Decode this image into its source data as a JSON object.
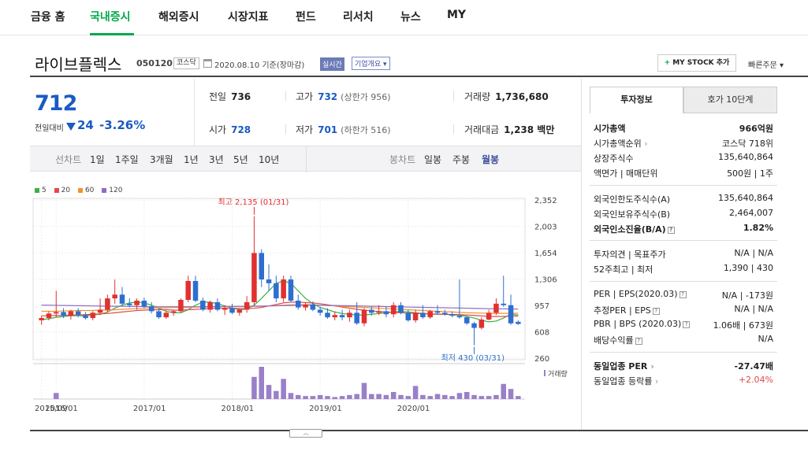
{
  "nav": {
    "items": [
      "금융 홈",
      "국내증시",
      "해외증시",
      "시장지표",
      "펀드",
      "리서치",
      "뉴스",
      "MY"
    ],
    "active": "국내증시",
    "accent": "#03a94d"
  },
  "stock": {
    "name": "라이브플렉스",
    "code": "050120",
    "market": "코스닥",
    "date": "2020.08.10 기준(장마감)",
    "realtime": "실시간",
    "overview": "기업개요",
    "mystock": "MY STOCK 추가",
    "quick_order": "빠른주문"
  },
  "price": {
    "current": "712",
    "prev_label": "전일대비",
    "change": "24",
    "change_pct": "-3.26%",
    "direction": "down",
    "color": "#1a5ac2"
  },
  "quote": {
    "prev_close_label": "전일",
    "prev_close": "736",
    "high_label": "고가",
    "high": "732",
    "upper_limit": "(상한가 956)",
    "volume_label": "거래량",
    "volume": "1,736,680",
    "open_label": "시가",
    "open": "728",
    "low_label": "저가",
    "low": "701",
    "lower_limit": "(하한가 516)",
    "amount_label": "거래대금",
    "amount": "1,238 백만"
  },
  "period": {
    "line_label": "선차트",
    "line_options": [
      "1일",
      "1주일",
      "3개월",
      "1년",
      "3년",
      "5년",
      "10년"
    ],
    "candle_label": "봉차트",
    "candle_options": [
      "일봉",
      "주봉",
      "월봉"
    ],
    "candle_selected": "월봉"
  },
  "chart_data": {
    "type": "candlestick",
    "legend": [
      {
        "name": "5",
        "color": "#3cb043"
      },
      {
        "name": "20",
        "color": "#e24a4a"
      },
      {
        "name": "60",
        "color": "#f0932b"
      },
      {
        "name": "120",
        "color": "#8e6cc4"
      }
    ],
    "y_ticks": [
      "2,352",
      "2,003",
      "1,654",
      "1,306",
      "957",
      "608",
      "260"
    ],
    "ylim": [
      260,
      2352
    ],
    "x_ticks": [
      "2015/09",
      "2016/01",
      "2017/01",
      "2018/01",
      "2019/01",
      "2020/01"
    ],
    "high_annotation": "최고 2,135 (01/31)",
    "low_annotation": "최저 430 (03/31)",
    "volume_label": "거래량",
    "candles": [
      {
        "o": 760,
        "h": 820,
        "l": 700,
        "c": 790
      },
      {
        "o": 790,
        "h": 880,
        "l": 760,
        "c": 850
      },
      {
        "o": 850,
        "h": 1150,
        "l": 800,
        "c": 870
      },
      {
        "o": 870,
        "h": 920,
        "l": 790,
        "c": 820
      },
      {
        "o": 820,
        "h": 900,
        "l": 770,
        "c": 880
      },
      {
        "o": 880,
        "h": 920,
        "l": 800,
        "c": 830
      },
      {
        "o": 830,
        "h": 870,
        "l": 770,
        "c": 790
      },
      {
        "o": 790,
        "h": 880,
        "l": 760,
        "c": 860
      },
      {
        "o": 860,
        "h": 1050,
        "l": 830,
        "c": 900
      },
      {
        "o": 900,
        "h": 1100,
        "l": 860,
        "c": 1050
      },
      {
        "o": 1050,
        "h": 1300,
        "l": 980,
        "c": 1100
      },
      {
        "o": 1100,
        "h": 1200,
        "l": 950,
        "c": 980
      },
      {
        "o": 980,
        "h": 1050,
        "l": 930,
        "c": 960
      },
      {
        "o": 960,
        "h": 1050,
        "l": 900,
        "c": 1020
      },
      {
        "o": 1020,
        "h": 1060,
        "l": 920,
        "c": 940
      },
      {
        "o": 940,
        "h": 1000,
        "l": 850,
        "c": 880
      },
      {
        "o": 880,
        "h": 920,
        "l": 780,
        "c": 800
      },
      {
        "o": 800,
        "h": 880,
        "l": 780,
        "c": 860
      },
      {
        "o": 860,
        "h": 900,
        "l": 820,
        "c": 880
      },
      {
        "o": 880,
        "h": 1050,
        "l": 860,
        "c": 1030
      },
      {
        "o": 1030,
        "h": 1350,
        "l": 1000,
        "c": 1280
      },
      {
        "o": 1280,
        "h": 1350,
        "l": 1000,
        "c": 1020
      },
      {
        "o": 1020,
        "h": 1060,
        "l": 880,
        "c": 900
      },
      {
        "o": 900,
        "h": 1020,
        "l": 860,
        "c": 1000
      },
      {
        "o": 1000,
        "h": 1050,
        "l": 880,
        "c": 900
      },
      {
        "o": 900,
        "h": 960,
        "l": 830,
        "c": 920
      },
      {
        "o": 920,
        "h": 980,
        "l": 840,
        "c": 860
      },
      {
        "o": 860,
        "h": 920,
        "l": 820,
        "c": 900
      },
      {
        "o": 900,
        "h": 1080,
        "l": 860,
        "c": 1000
      },
      {
        "o": 1000,
        "h": 2135,
        "l": 960,
        "c": 1650
      },
      {
        "o": 1650,
        "h": 1700,
        "l": 1200,
        "c": 1300
      },
      {
        "o": 1300,
        "h": 1500,
        "l": 1150,
        "c": 1250
      },
      {
        "o": 1250,
        "h": 1350,
        "l": 1000,
        "c": 1050
      },
      {
        "o": 1050,
        "h": 1350,
        "l": 1000,
        "c": 1300
      },
      {
        "o": 1300,
        "h": 1350,
        "l": 1000,
        "c": 1020
      },
      {
        "o": 1020,
        "h": 1100,
        "l": 900,
        "c": 930
      },
      {
        "o": 930,
        "h": 1000,
        "l": 890,
        "c": 970
      },
      {
        "o": 970,
        "h": 1010,
        "l": 880,
        "c": 900
      },
      {
        "o": 900,
        "h": 940,
        "l": 820,
        "c": 860
      },
      {
        "o": 860,
        "h": 920,
        "l": 780,
        "c": 800
      },
      {
        "o": 800,
        "h": 880,
        "l": 760,
        "c": 830
      },
      {
        "o": 830,
        "h": 900,
        "l": 760,
        "c": 800
      },
      {
        "o": 800,
        "h": 900,
        "l": 740,
        "c": 860
      },
      {
        "o": 860,
        "h": 1000,
        "l": 700,
        "c": 720
      },
      {
        "o": 720,
        "h": 920,
        "l": 680,
        "c": 900
      },
      {
        "o": 900,
        "h": 940,
        "l": 820,
        "c": 860
      },
      {
        "o": 860,
        "h": 960,
        "l": 830,
        "c": 880
      },
      {
        "o": 880,
        "h": 940,
        "l": 800,
        "c": 840
      },
      {
        "o": 840,
        "h": 1000,
        "l": 800,
        "c": 960
      },
      {
        "o": 960,
        "h": 1000,
        "l": 840,
        "c": 860
      },
      {
        "o": 860,
        "h": 900,
        "l": 740,
        "c": 760
      },
      {
        "o": 760,
        "h": 900,
        "l": 730,
        "c": 860
      },
      {
        "o": 860,
        "h": 960,
        "l": 780,
        "c": 800
      },
      {
        "o": 800,
        "h": 900,
        "l": 780,
        "c": 880
      },
      {
        "o": 880,
        "h": 960,
        "l": 830,
        "c": 860
      },
      {
        "o": 860,
        "h": 900,
        "l": 820,
        "c": 840
      },
      {
        "o": 840,
        "h": 880,
        "l": 800,
        "c": 820
      },
      {
        "o": 820,
        "h": 1300,
        "l": 780,
        "c": 800
      },
      {
        "o": 800,
        "h": 820,
        "l": 700,
        "c": 720
      },
      {
        "o": 720,
        "h": 740,
        "l": 430,
        "c": 660
      },
      {
        "o": 660,
        "h": 800,
        "l": 640,
        "c": 770
      },
      {
        "o": 770,
        "h": 900,
        "l": 760,
        "c": 860
      },
      {
        "o": 860,
        "h": 1050,
        "l": 830,
        "c": 980
      },
      {
        "o": 980,
        "h": 1350,
        "l": 940,
        "c": 960
      },
      {
        "o": 960,
        "h": 1100,
        "l": 700,
        "c": 720
      },
      {
        "o": 740,
        "h": 760,
        "l": 700,
        "c": 712
      }
    ],
    "ma": {
      "5": [
        770,
        780,
        800,
        810,
        820,
        820,
        820,
        830,
        840,
        870,
        920,
        960,
        990,
        1000,
        990,
        960,
        920,
        880,
        860,
        860,
        900,
        960,
        1000,
        1000,
        980,
        950,
        920,
        900,
        910,
        960,
        1050,
        1150,
        1250,
        1280,
        1250,
        1150,
        1050,
        980,
        930,
        900,
        870,
        850,
        840,
        830,
        830,
        840,
        850,
        860,
        870,
        880,
        870,
        860,
        850,
        840,
        840,
        840,
        830,
        830,
        810,
        790,
        760,
        740,
        750,
        790,
        840,
        830
      ],
      "20": [
        820,
        820,
        825,
        825,
        830,
        830,
        835,
        840,
        845,
        850,
        860,
        870,
        880,
        890,
        895,
        900,
        900,
        900,
        895,
        895,
        900,
        905,
        910,
        915,
        920,
        920,
        920,
        915,
        915,
        920,
        930,
        950,
        970,
        990,
        1000,
        1000,
        995,
        990,
        980,
        965,
        950,
        935,
        920,
        905,
        895,
        885,
        875,
        870,
        865,
        860,
        855,
        850,
        848,
        845,
        843,
        840,
        838,
        835,
        830,
        825,
        818,
        812,
        810,
        812,
        815,
        816
      ],
      "60": [
        880,
        880,
        880,
        885,
        885,
        890,
        890,
        890,
        895,
        895,
        900,
        905,
        910,
        915,
        920,
        925,
        925,
        925,
        930,
        930,
        930,
        935,
        935,
        935,
        940,
        940,
        940,
        940,
        940,
        945,
        945,
        950,
        955,
        960,
        965,
        965,
        965,
        965,
        960,
        955,
        950,
        945,
        940,
        935,
        930,
        925,
        920,
        915,
        910,
        905,
        900,
        895,
        890,
        885,
        880,
        875,
        870,
        865,
        860,
        858,
        855,
        853,
        852,
        852,
        853,
        853
      ],
      "120": [
        960,
        960,
        958,
        956,
        955,
        953,
        952,
        950,
        948,
        947,
        946,
        945,
        944,
        943,
        942,
        941,
        940,
        940,
        940,
        940,
        940,
        940,
        940,
        941,
        942,
        943,
        944,
        945,
        946,
        947,
        948,
        950,
        952,
        954,
        956,
        958,
        960,
        960,
        960,
        958,
        956,
        954,
        952,
        950,
        948,
        946,
        944,
        942,
        940,
        938,
        936,
        934,
        932,
        930,
        928,
        926,
        924,
        922,
        920,
        918,
        916,
        914,
        912,
        911,
        910,
        910
      ]
    },
    "volume": [
      0,
      0,
      0.6,
      0,
      0,
      0,
      0,
      0,
      0,
      0,
      0,
      0,
      0,
      0,
      0,
      0,
      0,
      0,
      0,
      0,
      0,
      0,
      0,
      0,
      0,
      0,
      0,
      0,
      0,
      2.2,
      3.2,
      1.4,
      0.8,
      2.0,
      0.6,
      0.4,
      0.3,
      0.3,
      0.4,
      0.3,
      0.2,
      0.3,
      0.4,
      0.5,
      1.6,
      0.5,
      0.5,
      0.4,
      0.7,
      0.4,
      0.3,
      1.3,
      0.4,
      0.3,
      0.5,
      0.4,
      0.3,
      0.6,
      0.7,
      0.4,
      0.3,
      0.3,
      0.4,
      1.5,
      1.0,
      0.3
    ]
  },
  "side": {
    "tab_invest": "투자정보",
    "tab_orderbook": "호가 10단계",
    "rows1": [
      {
        "label": "시가총액",
        "value": "966억원",
        "bold": true
      },
      {
        "label": "시가총액순위",
        "value": "코스닥 718위"
      },
      {
        "label": "상장주식수",
        "value": "135,640,864"
      },
      {
        "label": "액면가 | 매매단위",
        "value": "500원 | 1주"
      }
    ],
    "rows2": [
      {
        "label": "외국인한도주식수(A)",
        "value": "135,640,864"
      },
      {
        "label": "외국인보유주식수(B)",
        "value": "2,464,007"
      },
      {
        "label": "외국인소진율(B/A)",
        "value": "1.82%",
        "bold": true
      }
    ],
    "rows3": [
      {
        "label": "투자의견 | 목표주가",
        "value": "N/A | N/A"
      },
      {
        "label": "52주최고 | 최저",
        "value": "1,390 | 430"
      }
    ],
    "rows4": [
      {
        "label": "PER | EPS(2020.03)",
        "value": "N/A | -173원"
      },
      {
        "label": "추정PER | EPS",
        "value": "N/A | N/A"
      },
      {
        "label": "PBR | BPS (2020.03)",
        "value": "1.06배 | 673원"
      },
      {
        "label": "배당수익률",
        "value": "N/A"
      }
    ],
    "rows5": [
      {
        "label": "동일업종 PER",
        "value": "-27.47배",
        "bold": true
      },
      {
        "label": "동일업종 등락률",
        "value": "+2.04%",
        "color": "#e24a4a"
      }
    ],
    "scroll_icon": "chevron-up-icon"
  }
}
